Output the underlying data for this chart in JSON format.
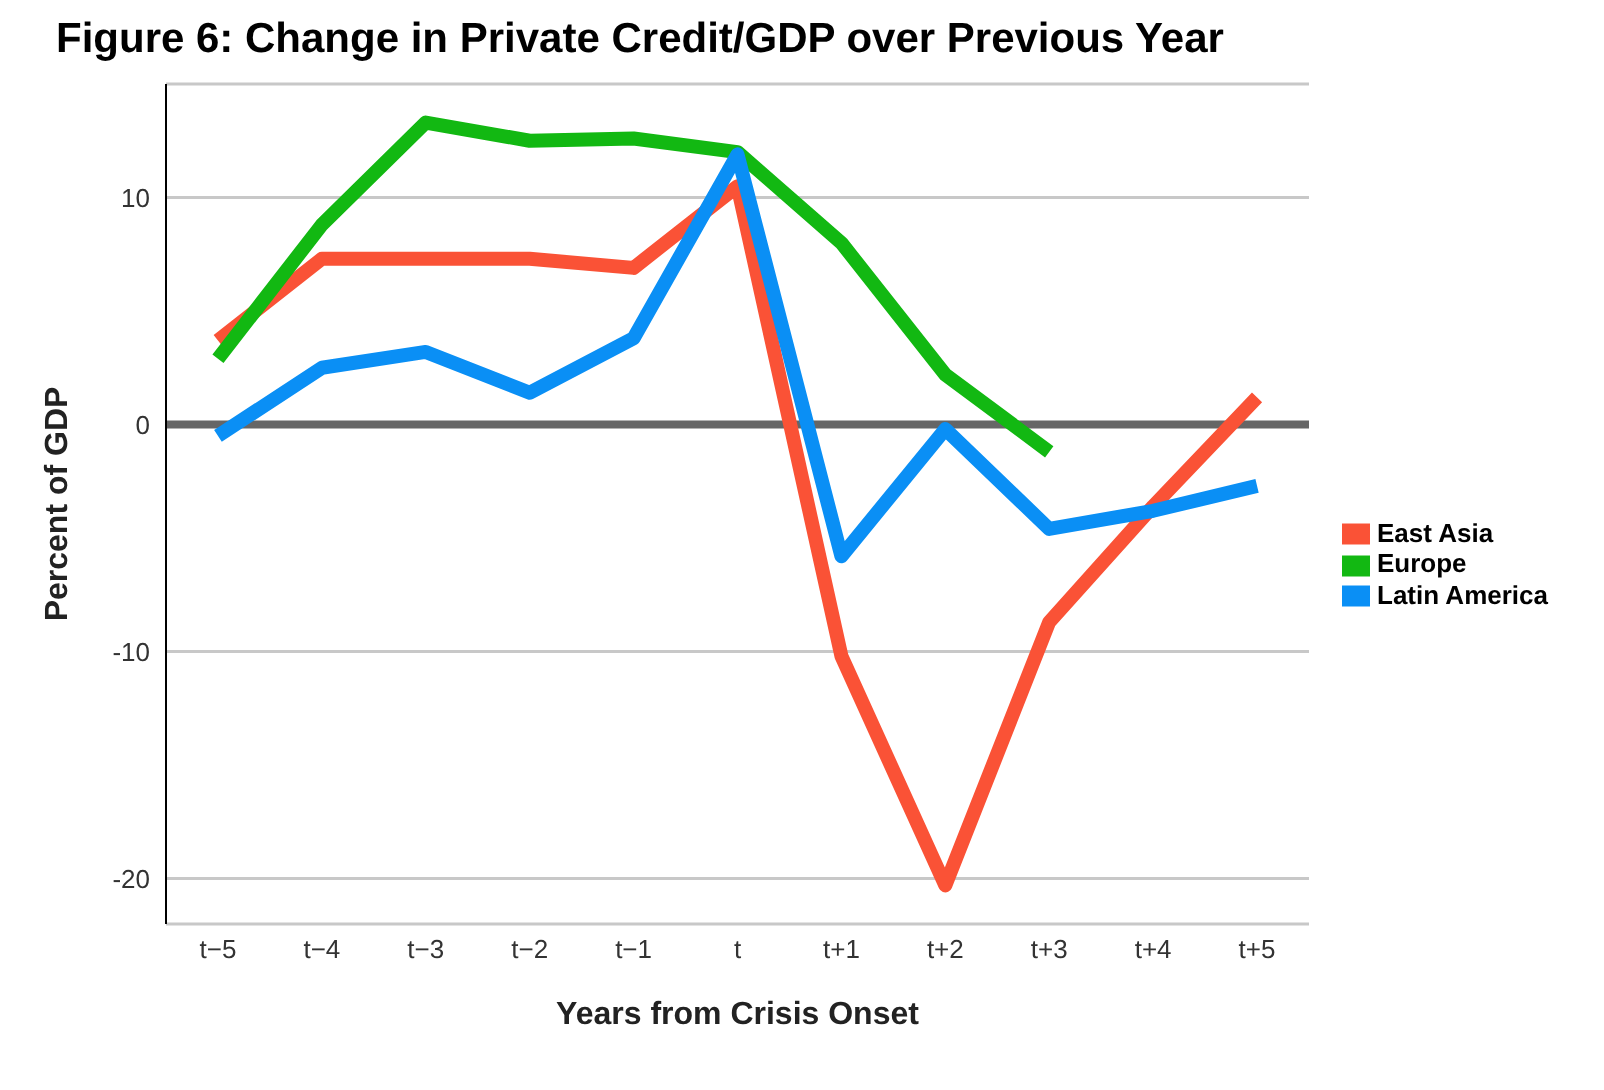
{
  "chart_data": {
    "type": "line",
    "title": "Figure 6: Change in Private Credit/GDP over Previous Year",
    "xlabel": "Years from Crisis Onset",
    "ylabel": "Percent of GDP",
    "categories": [
      "t−5",
      "t−4",
      "t−3",
      "t−2",
      "t−1",
      "t",
      "t+1",
      "t+2",
      "t+3",
      "t+4",
      "t+5"
    ],
    "series": [
      {
        "name": "East Asia",
        "color": "#fa5236",
        "values": [
          3.7,
          7.3,
          7.3,
          7.3,
          6.9,
          10.5,
          -10.2,
          -20.3,
          -8.7,
          -3.6,
          1.2
        ]
      },
      {
        "name": "Europe",
        "color": "#12b812",
        "values": [
          2.9,
          8.8,
          13.3,
          12.5,
          12.6,
          12.0,
          8.0,
          2.2,
          -1.2,
          null,
          null
        ]
      },
      {
        "name": "Latin America",
        "color": "#0a8ff5",
        "values": [
          -0.5,
          2.5,
          3.2,
          1.4,
          3.8,
          11.9,
          -5.8,
          -0.2,
          -4.6,
          -3.8,
          -2.7
        ]
      }
    ],
    "ylim": [
      -22,
      15
    ],
    "yticks": [
      -20,
      -10,
      0,
      10
    ],
    "grid": "y",
    "legend": "right",
    "marker": "none",
    "line_style": "solid",
    "ref_lines": [
      {
        "axis": "y",
        "value": 0,
        "color": "#666666"
      }
    ]
  }
}
